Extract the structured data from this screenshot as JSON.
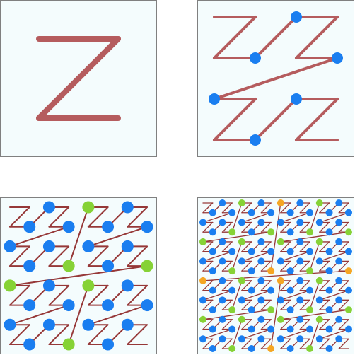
{
  "panels": [
    {
      "id": "order-1",
      "level": 1,
      "markers": []
    },
    {
      "id": "order-2",
      "level": 2,
      "markers": [
        {
          "block": 1,
          "color": "blue"
        },
        {
          "block": 2,
          "color": "blue"
        }
      ]
    },
    {
      "id": "order-3",
      "level": 3,
      "markers": [
        {
          "block": 1,
          "color": "blue"
        },
        {
          "block": 2,
          "color": "green"
        },
        {
          "block": 3,
          "color": "blue"
        },
        {
          "block": 4,
          "color": "orange"
        },
        {
          "block": 5,
          "color": "green"
        },
        {
          "block": 6,
          "color": "blue"
        },
        {
          "block": 7,
          "color": "green"
        }
      ]
    },
    {
      "id": "order-4",
      "level": 4,
      "markers": []
    }
  ],
  "colors": {
    "background": "#ffffff",
    "panel_fill": "#f4fcfd",
    "panel_border": "#808080",
    "curve": "#b55c5e",
    "curve_inner": "#963838",
    "blue": "#1a7ef0",
    "green": "#86d236",
    "orange": "#f5a623",
    "red": "#cc1f2a"
  },
  "marker_color_by_bit": {
    "1": "blue",
    "2": "green",
    "3": "orange",
    "4": "red"
  }
}
